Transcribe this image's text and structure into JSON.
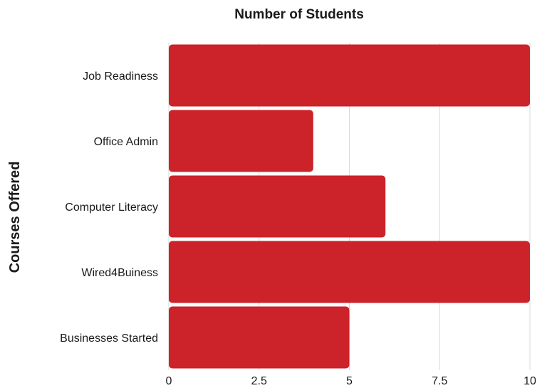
{
  "chart_data": {
    "type": "bar",
    "orientation": "horizontal",
    "title": "Number of Students",
    "ylabel": "Courses Offered",
    "xlabel": "",
    "categories": [
      "Job Readiness",
      "Office Admin",
      "Computer Literacy",
      "Wired4Buiness",
      "Businesses Started"
    ],
    "values": [
      10,
      4,
      6,
      10,
      5
    ],
    "xlim": [
      0,
      10
    ],
    "ticks": [
      "0",
      "2.5",
      "5",
      "7.5",
      "10"
    ],
    "tick_values": [
      0,
      2.5,
      5,
      7.5,
      10
    ],
    "grid": true,
    "legend": "none",
    "bar_color": "#cc2229"
  }
}
